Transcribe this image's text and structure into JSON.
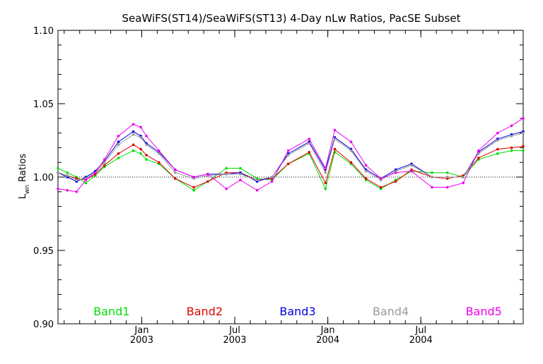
{
  "chart_data": {
    "type": "line",
    "title": "SeaWiFS(ST14)/SeaWiFS(ST13) 4-Day nLw Ratios, PacSE Subset",
    "ylabel": "Lwn Ratios",
    "xlabel": "",
    "ylim": [
      0.9,
      1.1
    ],
    "y_ticks": [
      "1.10",
      "1.05",
      "1.00",
      "0.95",
      "0.90"
    ],
    "x_ticks": [
      {
        "month": "Jan",
        "year": "2003",
        "pos": 0.18
      },
      {
        "month": "Jul",
        "year": "2003",
        "pos": 0.38
      },
      {
        "month": "Jan",
        "year": "2004",
        "pos": 0.58
      },
      {
        "month": "Jul",
        "year": "2004",
        "pos": 0.78
      }
    ],
    "reference_line": {
      "y": 1.0,
      "style": "dotted"
    },
    "x": [
      0.0,
      0.02,
      0.04,
      0.06,
      0.08,
      0.1,
      0.13,
      0.162,
      0.178,
      0.19,
      0.217,
      0.252,
      0.292,
      0.322,
      0.362,
      0.392,
      0.428,
      0.46,
      0.495,
      0.54,
      0.575,
      0.595,
      0.63,
      0.662,
      0.694,
      0.726,
      0.76,
      0.804,
      0.837,
      0.871,
      0.904,
      0.945,
      0.975,
      1.0
    ],
    "series": [
      {
        "name": "Band1",
        "color": "#00dd00",
        "values": [
          1.006,
          1.003,
          1.0,
          0.996,
          1.001,
          1.007,
          1.013,
          1.018,
          1.016,
          1.012,
          1.009,
          0.999,
          0.991,
          0.997,
          1.006,
          1.006,
          0.999,
          0.998,
          1.009,
          1.016,
          0.992,
          1.017,
          1.009,
          0.998,
          0.992,
          0.998,
          1.004,
          1.003,
          1.003,
          1.0,
          1.012,
          1.016,
          1.018,
          1.018
        ]
      },
      {
        "name": "Band2",
        "color": "#e00000",
        "values": [
          1.003,
          1.001,
          0.999,
          0.998,
          1.002,
          1.008,
          1.016,
          1.022,
          1.019,
          1.015,
          1.01,
          0.999,
          0.993,
          0.997,
          1.003,
          1.003,
          0.998,
          0.999,
          1.009,
          1.017,
          0.996,
          1.019,
          1.01,
          0.999,
          0.993,
          0.997,
          1.005,
          1.0,
          0.999,
          1.001,
          1.013,
          1.019,
          1.02,
          1.021
        ]
      },
      {
        "name": "Band3",
        "color": "#0000dd",
        "values": [
          1.003,
          1.0,
          0.997,
          1.0,
          1.004,
          1.011,
          1.024,
          1.031,
          1.028,
          1.023,
          1.017,
          1.005,
          1.0,
          1.002,
          1.002,
          1.003,
          0.997,
          1.0,
          1.016,
          1.024,
          1.005,
          1.027,
          1.019,
          1.005,
          0.999,
          1.005,
          1.009,
          1.0,
          1.0,
          1.0,
          1.017,
          1.026,
          1.029,
          1.031
        ]
      },
      {
        "name": "Band4",
        "color": "#999999",
        "values": [
          1.003,
          1.001,
          0.998,
          0.999,
          1.003,
          1.01,
          1.022,
          1.029,
          1.027,
          1.022,
          1.016,
          1.003,
          0.999,
          1.001,
          1.002,
          1.002,
          0.998,
          1.0,
          1.015,
          1.023,
          1.003,
          1.026,
          1.018,
          1.004,
          0.998,
          1.004,
          1.008,
          1.0,
          1.0,
          1.0,
          1.016,
          1.025,
          1.028,
          1.03
        ]
      },
      {
        "name": "Band5",
        "color": "#ee00ee",
        "values": [
          0.992,
          0.991,
          0.99,
          0.998,
          1.003,
          1.012,
          1.028,
          1.036,
          1.034,
          1.028,
          1.018,
          1.005,
          1.0,
          1.002,
          0.992,
          0.998,
          0.991,
          0.997,
          1.018,
          1.026,
          1.006,
          1.032,
          1.024,
          1.008,
          0.999,
          1.003,
          1.004,
          0.993,
          0.993,
          0.996,
          1.018,
          1.03,
          1.035,
          1.04
        ]
      }
    ],
    "legend": {
      "placement": "bottom-inside"
    },
    "grid": false
  }
}
